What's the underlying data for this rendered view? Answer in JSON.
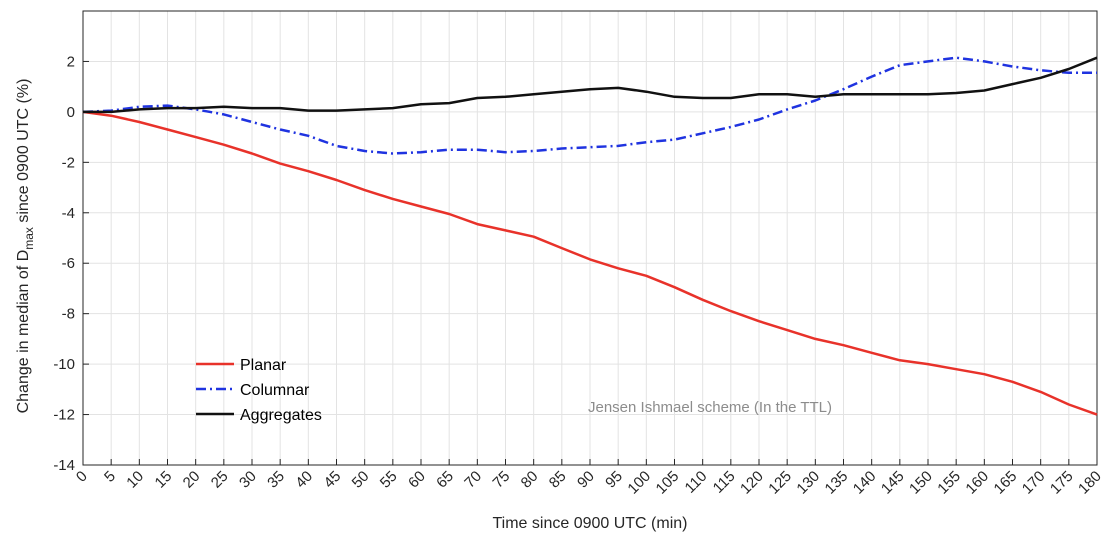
{
  "chart_data": {
    "type": "line",
    "xlabel": "Time since 0900 UTC (min)",
    "ylabel_prefix": "Change in median of D",
    "ylabel_sub": "max",
    "ylabel_suffix": " since 0900 UTC (%)",
    "xlim": [
      0,
      180
    ],
    "ylim": [
      -14,
      4
    ],
    "grid": true,
    "legend_position": "lower-left",
    "x_ticks": [
      "0",
      "5",
      "10",
      "15",
      "20",
      "25",
      "30",
      "35",
      "40",
      "45",
      "50",
      "55",
      "60",
      "65",
      "70",
      "75",
      "80",
      "85",
      "90",
      "95",
      "100",
      "105",
      "110",
      "115",
      "120",
      "125",
      "130",
      "135",
      "140",
      "145",
      "150",
      "155",
      "160",
      "165",
      "170",
      "175",
      "180"
    ],
    "y_ticks": [
      "2",
      "0",
      "-2",
      "-4",
      "-6",
      "-8",
      "-10",
      "-12",
      "-14"
    ],
    "annotation": "Jensen Ishmael scheme (In the TTL)",
    "x": [
      0,
      5,
      10,
      15,
      20,
      25,
      30,
      35,
      40,
      45,
      50,
      55,
      60,
      65,
      70,
      75,
      80,
      85,
      90,
      95,
      100,
      105,
      110,
      115,
      120,
      125,
      130,
      135,
      140,
      145,
      150,
      155,
      160,
      165,
      170,
      175,
      180
    ],
    "series": [
      {
        "name": "Planar",
        "color": "#e8322a",
        "dash": "solid",
        "values": [
          0,
          -0.15,
          -0.4,
          -0.7,
          -1.0,
          -1.3,
          -1.65,
          -2.05,
          -2.35,
          -2.7,
          -3.1,
          -3.45,
          -3.75,
          -4.05,
          -4.45,
          -4.7,
          -4.95,
          -5.4,
          -5.85,
          -6.2,
          -6.5,
          -6.95,
          -7.45,
          -7.9,
          -8.3,
          -8.65,
          -9.0,
          -9.25,
          -9.55,
          -9.85,
          -10.0,
          -10.2,
          -10.4,
          -10.7,
          -11.1,
          -11.6,
          -12.0
        ]
      },
      {
        "name": "Columnar",
        "color": "#1f33e0",
        "dash": "dashdot",
        "values": [
          0,
          0.05,
          0.2,
          0.25,
          0.1,
          -0.1,
          -0.4,
          -0.7,
          -0.95,
          -1.35,
          -1.55,
          -1.65,
          -1.6,
          -1.5,
          -1.5,
          -1.6,
          -1.55,
          -1.45,
          -1.4,
          -1.35,
          -1.2,
          -1.1,
          -0.85,
          -0.6,
          -0.3,
          0.1,
          0.45,
          0.9,
          1.4,
          1.85,
          2.0,
          2.15,
          2.0,
          1.8,
          1.65,
          1.55,
          1.55
        ]
      },
      {
        "name": "Aggregates",
        "color": "#111111",
        "dash": "solid",
        "values": [
          0,
          0.0,
          0.1,
          0.15,
          0.15,
          0.2,
          0.15,
          0.15,
          0.05,
          0.05,
          0.1,
          0.15,
          0.3,
          0.35,
          0.55,
          0.6,
          0.7,
          0.8,
          0.9,
          0.95,
          0.8,
          0.6,
          0.55,
          0.55,
          0.7,
          0.7,
          0.6,
          0.7,
          0.7,
          0.7,
          0.7,
          0.75,
          0.85,
          1.1,
          1.35,
          1.7,
          2.15
        ]
      }
    ]
  }
}
